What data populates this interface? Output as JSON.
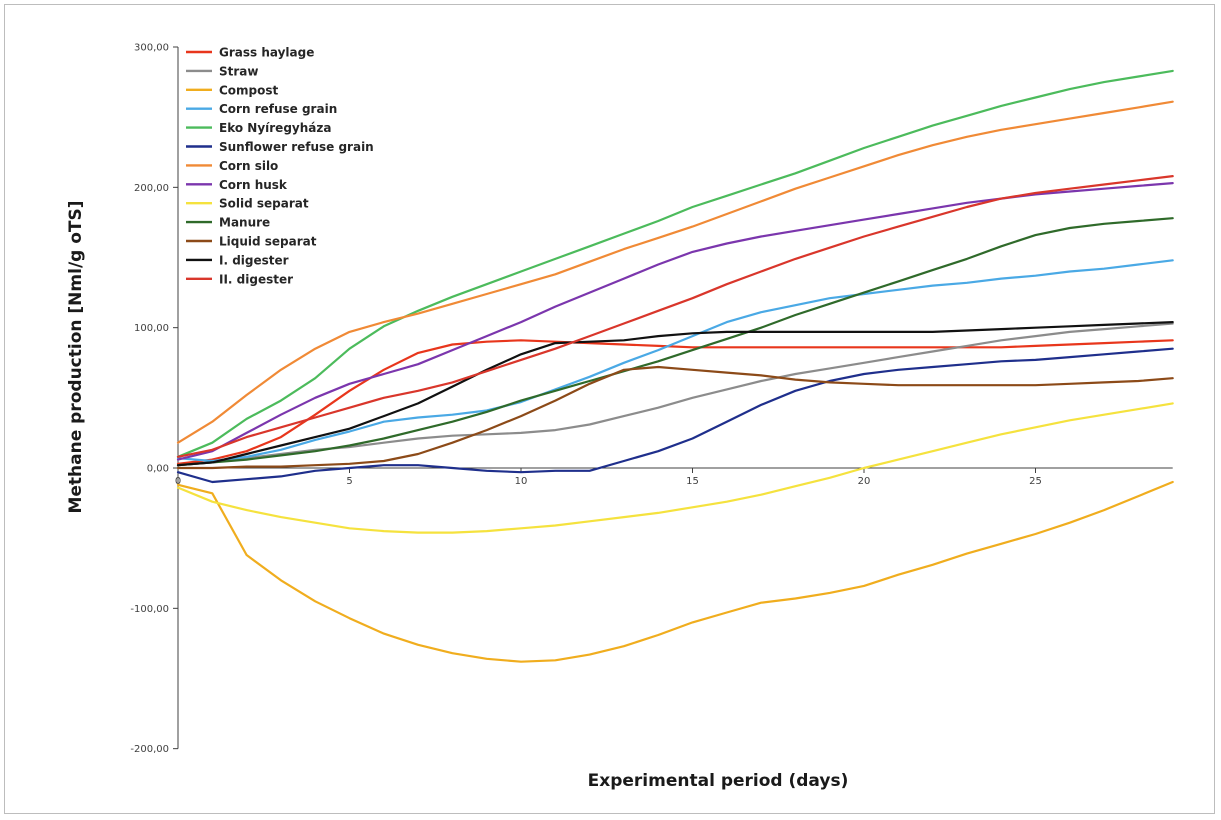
{
  "chart_data": {
    "type": "line",
    "title": "",
    "xlabel": "Experimental period (days)",
    "ylabel": "Methane production [Nml/g oTS]",
    "xlim": [
      0,
      29
    ],
    "ylim": [
      -200,
      300
    ],
    "grid": false,
    "legend_position": "top-left",
    "x_ticks": [
      0,
      5,
      10,
      15,
      20,
      25
    ],
    "x_tick_labels": [
      "0",
      "5",
      "10",
      "15",
      "20",
      "25"
    ],
    "y_ticks": [
      300,
      200,
      100,
      0,
      -100,
      -200
    ],
    "y_tick_labels": [
      "300,00",
      "200,00",
      "100,00",
      "0,00",
      "-100,00",
      "-200,00"
    ],
    "x": [
      0,
      1,
      2,
      3,
      4,
      5,
      6,
      7,
      8,
      9,
      10,
      11,
      12,
      13,
      14,
      15,
      16,
      17,
      18,
      19,
      20,
      21,
      22,
      23,
      24,
      25,
      26,
      27,
      28,
      29
    ],
    "series": [
      {
        "name": "Grass haylage",
        "color": "#e8361c",
        "values": [
          3,
          6,
          12,
          22,
          38,
          55,
          70,
          82,
          88,
          90,
          91,
          90,
          89,
          88,
          87,
          86,
          86,
          86,
          86,
          86,
          86,
          86,
          86,
          86,
          86,
          87,
          88,
          89,
          90,
          91
        ]
      },
      {
        "name": "Straw",
        "color": "#8c8c8c",
        "values": [
          2,
          4,
          7,
          10,
          13,
          15,
          18,
          21,
          23,
          24,
          25,
          27,
          31,
          37,
          43,
          50,
          56,
          62,
          67,
          71,
          75,
          79,
          83,
          87,
          91,
          94,
          97,
          99,
          101,
          103
        ]
      },
      {
        "name": "Compost",
        "color": "#f0ad1e",
        "values": [
          -12,
          -18,
          -62,
          -80,
          -95,
          -107,
          -118,
          -126,
          -132,
          -136,
          -138,
          -137,
          -133,
          -127,
          -119,
          -110,
          -103,
          -96,
          -93,
          -89,
          -84,
          -76,
          -69,
          -61,
          -54,
          -47,
          -39,
          -30,
          -20,
          -10
        ]
      },
      {
        "name": "Corn refuse grain",
        "color": "#4aa9e5",
        "values": [
          7,
          5,
          8,
          13,
          20,
          26,
          33,
          36,
          38,
          41,
          47,
          56,
          65,
          75,
          84,
          94,
          104,
          111,
          116,
          121,
          124,
          127,
          130,
          132,
          135,
          137,
          140,
          142,
          145,
          148
        ]
      },
      {
        "name": "Eko Nyíregyháza",
        "color": "#4cbb5c",
        "values": [
          8,
          18,
          35,
          48,
          64,
          85,
          101,
          112,
          122,
          131,
          140,
          149,
          158,
          167,
          176,
          186,
          194,
          202,
          210,
          219,
          228,
          236,
          244,
          251,
          258,
          264,
          270,
          275,
          279,
          283
        ]
      },
      {
        "name": "Sunflower refuse grain",
        "color": "#1f2f8c",
        "values": [
          -3,
          -10,
          -8,
          -6,
          -2,
          0,
          2,
          2,
          0,
          -2,
          -3,
          -2,
          -2,
          5,
          12,
          21,
          33,
          45,
          55,
          62,
          67,
          70,
          72,
          74,
          76,
          77,
          79,
          81,
          83,
          85
        ]
      },
      {
        "name": "Corn silo",
        "color": "#f08a36",
        "values": [
          18,
          33,
          52,
          70,
          85,
          97,
          104,
          110,
          117,
          124,
          131,
          138,
          147,
          156,
          164,
          172,
          181,
          190,
          199,
          207,
          215,
          223,
          230,
          236,
          241,
          245,
          249,
          253,
          257,
          261
        ]
      },
      {
        "name": "Corn husk",
        "color": "#7b36ad",
        "values": [
          6,
          12,
          25,
          38,
          50,
          60,
          67,
          74,
          84,
          94,
          104,
          115,
          125,
          135,
          145,
          154,
          160,
          165,
          169,
          173,
          177,
          181,
          185,
          189,
          192,
          195,
          197,
          199,
          201,
          203
        ]
      },
      {
        "name": "Solid separat",
        "color": "#f5e23e",
        "values": [
          -14,
          -24,
          -30,
          -35,
          -39,
          -43,
          -45,
          -46,
          -46,
          -45,
          -43,
          -41,
          -38,
          -35,
          -32,
          -28,
          -24,
          -19,
          -13,
          -7,
          0,
          6,
          12,
          18,
          24,
          29,
          34,
          38,
          42,
          46
        ]
      },
      {
        "name": "Manure",
        "color": "#2f6a2a",
        "values": [
          2,
          4,
          6,
          9,
          12,
          16,
          21,
          27,
          33,
          40,
          48,
          55,
          62,
          69,
          76,
          84,
          92,
          100,
          109,
          117,
          125,
          133,
          141,
          149,
          158,
          166,
          171,
          174,
          176,
          178
        ]
      },
      {
        "name": "Liquid separat",
        "color": "#8c4a18",
        "values": [
          0,
          0,
          1,
          1,
          2,
          3,
          5,
          10,
          18,
          27,
          37,
          48,
          60,
          70,
          72,
          70,
          68,
          66,
          63,
          61,
          60,
          59,
          59,
          59,
          59,
          59,
          60,
          61,
          62,
          64
        ]
      },
      {
        "name": "I. digester",
        "color": "#111111",
        "values": [
          2,
          4,
          10,
          16,
          22,
          28,
          37,
          46,
          58,
          70,
          81,
          89,
          90,
          91,
          94,
          96,
          97,
          97,
          97,
          97,
          97,
          97,
          97,
          98,
          99,
          100,
          101,
          102,
          103,
          104
        ]
      },
      {
        "name": "II. digester",
        "color": "#d9362b",
        "values": [
          8,
          13,
          22,
          29,
          36,
          43,
          50,
          55,
          61,
          69,
          77,
          85,
          94,
          103,
          112,
          121,
          131,
          140,
          149,
          157,
          165,
          172,
          179,
          186,
          192,
          196,
          199,
          202,
          205,
          208
        ]
      }
    ]
  }
}
